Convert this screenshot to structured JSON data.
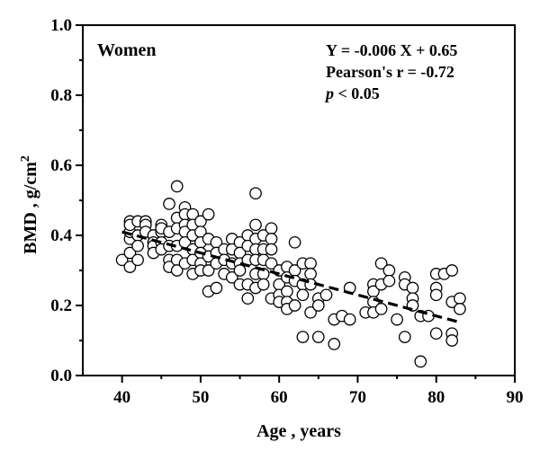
{
  "chart_data": {
    "type": "scatter",
    "group_label": "Women",
    "xlabel": "Age , years",
    "ylabel_main": "BMD , g/cm",
    "ylabel_sup": "2",
    "xlim": [
      35,
      90
    ],
    "ylim": [
      0.0,
      1.0
    ],
    "x_ticks": [
      "40",
      "50",
      "60",
      "70",
      "80",
      "90"
    ],
    "y_ticks": [
      "0.0",
      "0.2",
      "0.4",
      "0.6",
      "0.8",
      "1.0"
    ],
    "annotations": {
      "equation": "Y = -0.006 X + 0.65",
      "pearson": "Pearson's r = -0.72",
      "p_symbol": "p",
      "p_rest": " < 0.05"
    },
    "regression": {
      "slope": -0.006,
      "intercept": 0.65,
      "x_range": [
        40,
        83
      ]
    },
    "points": [
      [
        40,
        0.33
      ],
      [
        41,
        0.31
      ],
      [
        41,
        0.35
      ],
      [
        41,
        0.39
      ],
      [
        41,
        0.41
      ],
      [
        41,
        0.44
      ],
      [
        41,
        0.43
      ],
      [
        42,
        0.44
      ],
      [
        42,
        0.4
      ],
      [
        42,
        0.37
      ],
      [
        42,
        0.33
      ],
      [
        43,
        0.44
      ],
      [
        43,
        0.43
      ],
      [
        43,
        0.41
      ],
      [
        44,
        0.4
      ],
      [
        44,
        0.38
      ],
      [
        44,
        0.37
      ],
      [
        44,
        0.35
      ],
      [
        45,
        0.43
      ],
      [
        45,
        0.41
      ],
      [
        45,
        0.38
      ],
      [
        45,
        0.36
      ],
      [
        45,
        0.42
      ],
      [
        46,
        0.49
      ],
      [
        46,
        0.41
      ],
      [
        46,
        0.37
      ],
      [
        46,
        0.33
      ],
      [
        46,
        0.31
      ],
      [
        47,
        0.54
      ],
      [
        47,
        0.45
      ],
      [
        47,
        0.42
      ],
      [
        47,
        0.37
      ],
      [
        47,
        0.33
      ],
      [
        47,
        0.3
      ],
      [
        48,
        0.48
      ],
      [
        48,
        0.46
      ],
      [
        48,
        0.43
      ],
      [
        48,
        0.41
      ],
      [
        48,
        0.38
      ],
      [
        48,
        0.32
      ],
      [
        49,
        0.46
      ],
      [
        49,
        0.43
      ],
      [
        49,
        0.4
      ],
      [
        49,
        0.36
      ],
      [
        49,
        0.33
      ],
      [
        49,
        0.29
      ],
      [
        50,
        0.44
      ],
      [
        50,
        0.41
      ],
      [
        50,
        0.38
      ],
      [
        50,
        0.35
      ],
      [
        50,
        0.32
      ],
      [
        50,
        0.3
      ],
      [
        51,
        0.46
      ],
      [
        51,
        0.39
      ],
      [
        51,
        0.34
      ],
      [
        51,
        0.3
      ],
      [
        51,
        0.24
      ],
      [
        52,
        0.38
      ],
      [
        52,
        0.35
      ],
      [
        52,
        0.32
      ],
      [
        52,
        0.25
      ],
      [
        53,
        0.36
      ],
      [
        53,
        0.33
      ],
      [
        53,
        0.29
      ],
      [
        54,
        0.39
      ],
      [
        54,
        0.36
      ],
      [
        54,
        0.32
      ],
      [
        54,
        0.28
      ],
      [
        55,
        0.38
      ],
      [
        55,
        0.35
      ],
      [
        55,
        0.32
      ],
      [
        55,
        0.3
      ],
      [
        55,
        0.26
      ],
      [
        56,
        0.4
      ],
      [
        56,
        0.37
      ],
      [
        56,
        0.33
      ],
      [
        56,
        0.26
      ],
      [
        56,
        0.22
      ],
      [
        57,
        0.52
      ],
      [
        57,
        0.43
      ],
      [
        57,
        0.39
      ],
      [
        57,
        0.36
      ],
      [
        57,
        0.33
      ],
      [
        57,
        0.29
      ],
      [
        57,
        0.25
      ],
      [
        58,
        0.4
      ],
      [
        58,
        0.36
      ],
      [
        58,
        0.33
      ],
      [
        58,
        0.29
      ],
      [
        58,
        0.26
      ],
      [
        59,
        0.42
      ],
      [
        59,
        0.39
      ],
      [
        59,
        0.36
      ],
      [
        59,
        0.32
      ],
      [
        59,
        0.22
      ],
      [
        60,
        0.3
      ],
      [
        60,
        0.26
      ],
      [
        60,
        0.23
      ],
      [
        60,
        0.21
      ],
      [
        61,
        0.31
      ],
      [
        61,
        0.28
      ],
      [
        61,
        0.24
      ],
      [
        61,
        0.21
      ],
      [
        61,
        0.19
      ],
      [
        62,
        0.38
      ],
      [
        62,
        0.3
      ],
      [
        62,
        0.27
      ],
      [
        62,
        0.2
      ],
      [
        63,
        0.32
      ],
      [
        63,
        0.26
      ],
      [
        63,
        0.23
      ],
      [
        63,
        0.11
      ],
      [
        64,
        0.32
      ],
      [
        64,
        0.29
      ],
      [
        64,
        0.26
      ],
      [
        64,
        0.18
      ],
      [
        65,
        0.22
      ],
      [
        65,
        0.2
      ],
      [
        65,
        0.11
      ],
      [
        66,
        0.23
      ],
      [
        67,
        0.16
      ],
      [
        67,
        0.09
      ],
      [
        68,
        0.17
      ],
      [
        69,
        0.25
      ],
      [
        69,
        0.16
      ],
      [
        71,
        0.18
      ],
      [
        72,
        0.26
      ],
      [
        72,
        0.24
      ],
      [
        72,
        0.21
      ],
      [
        72,
        0.18
      ],
      [
        73,
        0.32
      ],
      [
        73,
        0.26
      ],
      [
        73,
        0.19
      ],
      [
        74,
        0.3
      ],
      [
        74,
        0.27
      ],
      [
        75,
        0.16
      ],
      [
        76,
        0.28
      ],
      [
        76,
        0.26
      ],
      [
        76,
        0.11
      ],
      [
        77,
        0.25
      ],
      [
        77,
        0.22
      ],
      [
        77,
        0.2
      ],
      [
        78,
        0.17
      ],
      [
        78,
        0.04
      ],
      [
        79,
        0.17
      ],
      [
        80,
        0.29
      ],
      [
        80,
        0.25
      ],
      [
        80,
        0.23
      ],
      [
        80,
        0.12
      ],
      [
        81,
        0.29
      ],
      [
        82,
        0.3
      ],
      [
        82,
        0.21
      ],
      [
        82,
        0.12
      ],
      [
        82,
        0.1
      ],
      [
        83,
        0.22
      ],
      [
        83,
        0.19
      ]
    ],
    "grid": false,
    "legend": "none"
  }
}
